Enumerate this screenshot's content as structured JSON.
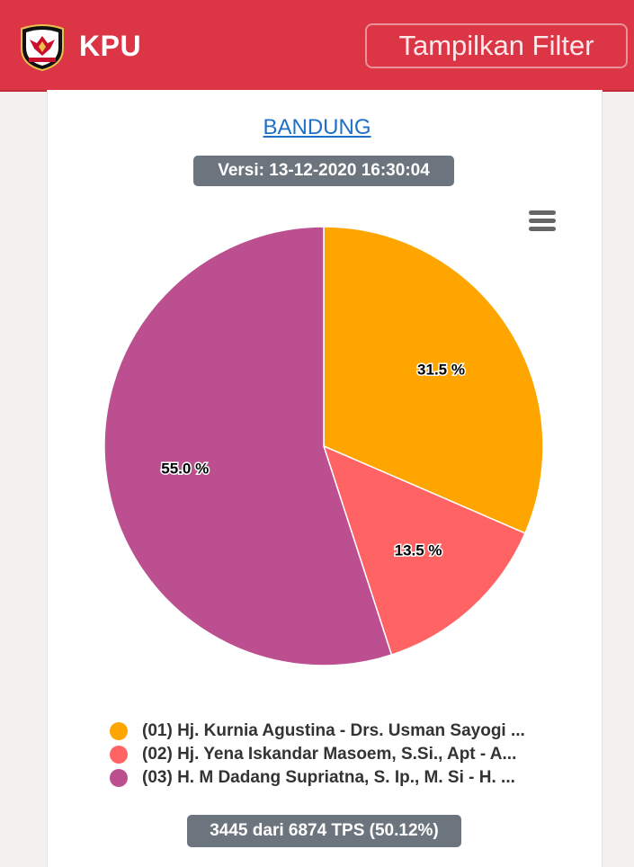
{
  "header": {
    "brand": "KPU",
    "filter_button": "Tampilkan Filter",
    "logo_icon": "kpu-garuda-emblem-icon",
    "background_color": "#dc3545"
  },
  "card": {
    "region_title": "BANDUNG",
    "version": "Versi: 13-12-2020 16:30:04",
    "menu_icon": "hamburger-menu-icon",
    "tps_summary": "3445 dari 6874 TPS (50.12%)"
  },
  "chart_data": {
    "type": "pie",
    "series": [
      {
        "name": "(01) Hj. Kurnia Agustina - Drs. Usman Sayogi ...",
        "value": 31.5,
        "label": "31.5 %",
        "color": "#ffa500"
      },
      {
        "name": "(02) Hj. Yena Iskandar Masoem, S.Si., Apt - A...",
        "value": 13.5,
        "label": "13.5 %",
        "color": "#ff6363"
      },
      {
        "name": "(03) H. M Dadang Supriatna, S. Ip., M. Si - H. ...",
        "value": 55.0,
        "label": "55.0 %",
        "color": "#bc4f8f"
      }
    ],
    "legend_position": "bottom"
  }
}
